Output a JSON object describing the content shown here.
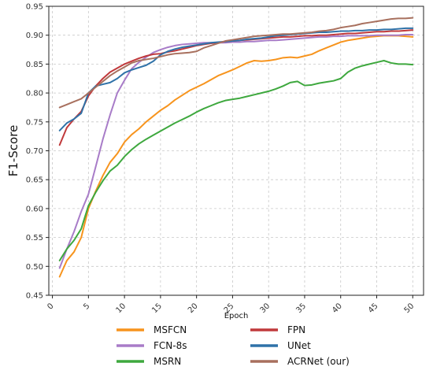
{
  "chart_data": {
    "type": "line",
    "title": "",
    "xlabel": "Epoch",
    "ylabel": "F1-Score",
    "xlim": [
      -0.5,
      51.5
    ],
    "ylim": [
      0.45,
      0.95
    ],
    "xticks": [
      0,
      5,
      10,
      15,
      20,
      25,
      30,
      35,
      40,
      45,
      50
    ],
    "yticks": [
      0.45,
      0.5,
      0.55,
      0.6,
      0.65,
      0.7,
      0.75,
      0.8,
      0.85,
      0.9,
      0.95
    ],
    "grid": true,
    "legend_placement": "below",
    "x": [
      1,
      2,
      3,
      4,
      5,
      6,
      7,
      8,
      9,
      10,
      11,
      12,
      13,
      14,
      15,
      16,
      17,
      18,
      19,
      20,
      21,
      22,
      23,
      24,
      25,
      26,
      27,
      28,
      29,
      30,
      31,
      32,
      33,
      34,
      35,
      36,
      37,
      38,
      39,
      40,
      41,
      42,
      43,
      44,
      45,
      46,
      47,
      48,
      49,
      50
    ],
    "series": [
      {
        "name": "MSFCN",
        "color": "#f7941d",
        "values": [
          0.482,
          0.51,
          0.525,
          0.55,
          0.6,
          0.63,
          0.657,
          0.68,
          0.695,
          0.715,
          0.728,
          0.738,
          0.75,
          0.76,
          0.77,
          0.778,
          0.788,
          0.796,
          0.804,
          0.81,
          0.816,
          0.823,
          0.83,
          0.835,
          0.84,
          0.846,
          0.852,
          0.856,
          0.855,
          0.856,
          0.858,
          0.861,
          0.862,
          0.861,
          0.864,
          0.867,
          0.873,
          0.878,
          0.883,
          0.888,
          0.891,
          0.893,
          0.895,
          0.897,
          0.898,
          0.899,
          0.899,
          0.899,
          0.898,
          0.897
        ]
      },
      {
        "name": "FCN-8s",
        "color": "#a87cc8",
        "values": [
          0.497,
          0.53,
          0.56,
          0.595,
          0.625,
          0.672,
          0.72,
          0.762,
          0.8,
          0.822,
          0.842,
          0.853,
          0.862,
          0.87,
          0.875,
          0.879,
          0.882,
          0.884,
          0.885,
          0.886,
          0.887,
          0.887,
          0.887,
          0.887,
          0.888,
          0.888,
          0.889,
          0.889,
          0.89,
          0.891,
          0.891,
          0.892,
          0.893,
          0.894,
          0.895,
          0.896,
          0.897,
          0.897,
          0.898,
          0.898,
          0.899,
          0.899,
          0.899,
          0.899,
          0.9,
          0.9,
          0.9,
          0.9,
          0.901,
          0.901
        ]
      },
      {
        "name": "MSRN",
        "color": "#3ea83e",
        "values": [
          0.51,
          0.53,
          0.545,
          0.565,
          0.605,
          0.628,
          0.648,
          0.665,
          0.675,
          0.69,
          0.702,
          0.712,
          0.72,
          0.727,
          0.734,
          0.741,
          0.748,
          0.754,
          0.76,
          0.767,
          0.773,
          0.778,
          0.783,
          0.787,
          0.789,
          0.791,
          0.794,
          0.797,
          0.8,
          0.803,
          0.807,
          0.812,
          0.818,
          0.82,
          0.813,
          0.814,
          0.817,
          0.819,
          0.821,
          0.825,
          0.836,
          0.843,
          0.847,
          0.85,
          0.853,
          0.856,
          0.852,
          0.85,
          0.85,
          0.849
        ]
      },
      {
        "name": "FPN",
        "color": "#c0393b",
        "values": [
          0.71,
          0.74,
          0.755,
          0.768,
          0.795,
          0.812,
          0.825,
          0.836,
          0.843,
          0.85,
          0.855,
          0.86,
          0.864,
          0.867,
          0.868,
          0.871,
          0.873,
          0.876,
          0.879,
          0.882,
          0.884,
          0.886,
          0.887,
          0.889,
          0.89,
          0.891,
          0.892,
          0.893,
          0.894,
          0.895,
          0.896,
          0.897,
          0.897,
          0.898,
          0.899,
          0.899,
          0.9,
          0.9,
          0.901,
          0.902,
          0.903,
          0.903,
          0.904,
          0.905,
          0.906,
          0.906,
          0.907,
          0.907,
          0.908,
          0.909
        ]
      },
      {
        "name": "UNet",
        "color": "#2f72a8",
        "values": [
          0.735,
          0.748,
          0.755,
          0.765,
          0.8,
          0.812,
          0.815,
          0.818,
          0.825,
          0.835,
          0.84,
          0.844,
          0.848,
          0.855,
          0.866,
          0.872,
          0.876,
          0.879,
          0.881,
          0.883,
          0.885,
          0.887,
          0.888,
          0.889,
          0.89,
          0.891,
          0.893,
          0.894,
          0.895,
          0.897,
          0.899,
          0.9,
          0.901,
          0.902,
          0.903,
          0.904,
          0.905,
          0.905,
          0.906,
          0.907,
          0.907,
          0.908,
          0.908,
          0.909,
          0.909,
          0.91,
          0.91,
          0.911,
          0.912,
          0.912
        ]
      },
      {
        "name": "ACRNet (our)",
        "color": "#a8705e",
        "values": [
          0.775,
          0.78,
          0.785,
          0.79,
          0.8,
          0.81,
          0.82,
          0.83,
          0.838,
          0.845,
          0.852,
          0.856,
          0.858,
          0.86,
          0.863,
          0.866,
          0.868,
          0.869,
          0.87,
          0.872,
          0.878,
          0.882,
          0.886,
          0.89,
          0.892,
          0.894,
          0.896,
          0.898,
          0.899,
          0.9,
          0.901,
          0.902,
          0.902,
          0.903,
          0.904,
          0.905,
          0.907,
          0.908,
          0.91,
          0.913,
          0.915,
          0.917,
          0.92,
          0.922,
          0.924,
          0.926,
          0.928,
          0.929,
          0.929,
          0.93
        ]
      }
    ],
    "legend": [
      [
        "MSFCN",
        "FPN"
      ],
      [
        "FCN-8s",
        "UNet"
      ],
      [
        "MSRN",
        "ACRNet (our)"
      ]
    ]
  }
}
